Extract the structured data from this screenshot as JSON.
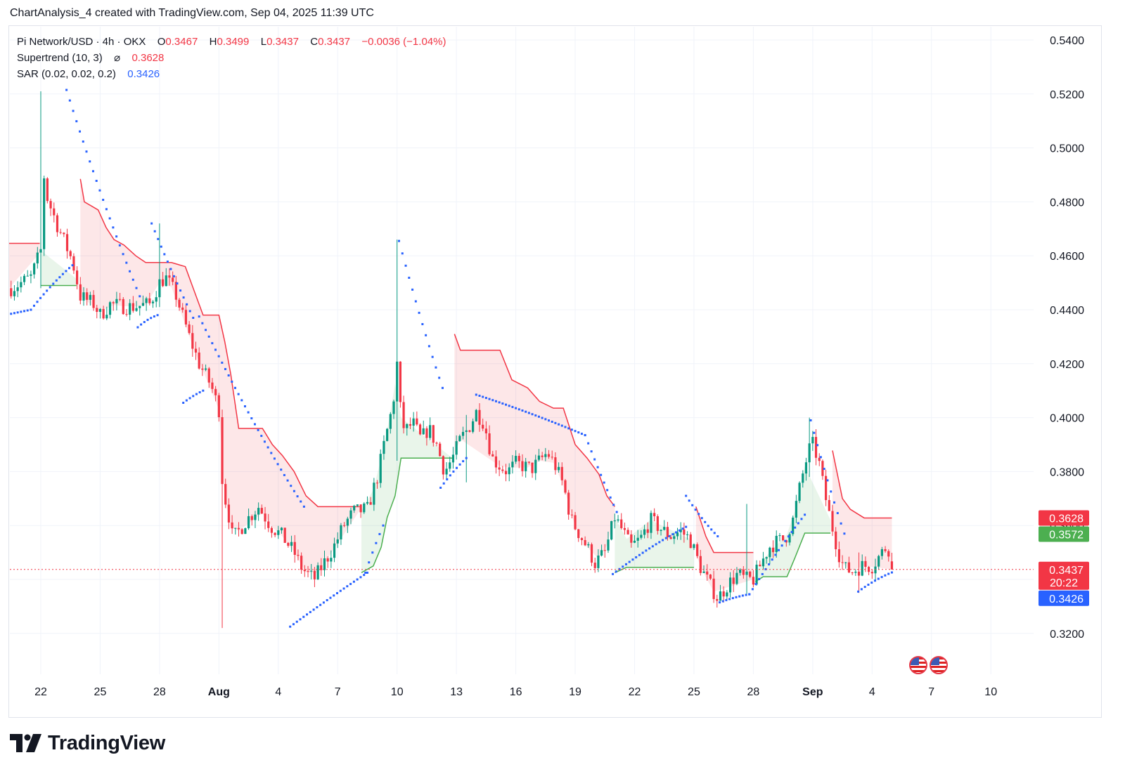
{
  "header": {
    "text": "ChartAnalysis_4 created with TradingView.com, Sep 04, 2025 11:39 UTC"
  },
  "legend": {
    "symbol": "Pi Network/USD · 4h · OKX",
    "ohlc": [
      {
        "key": "O",
        "value": "0.3467"
      },
      {
        "key": "H",
        "value": "0.3499"
      },
      {
        "key": "L",
        "value": "0.3437"
      },
      {
        "key": "C",
        "value": "0.3437"
      }
    ],
    "change": "−0.0036 (−1.04%)",
    "supertrend_label": "Supertrend (10, 3)",
    "supertrend_icon": "⌀",
    "supertrend_value": "0.3628",
    "sar_label": "SAR (0.02, 0.02, 0.2)",
    "sar_value": "0.3426"
  },
  "colors": {
    "up": "#089981",
    "down": "#f23645",
    "sar": "#2962ff",
    "st_up": "#4caf50",
    "st_down": "#f23645",
    "grid": "#f0f3fa"
  },
  "price_badges": [
    {
      "value": "0.3628",
      "color": "#f23645",
      "sub": ""
    },
    {
      "value": "0.3572",
      "color": "#4caf50",
      "sub": ""
    },
    {
      "value": "0.3437",
      "color": "#f23645",
      "sub": "20:22"
    },
    {
      "value": "0.3426",
      "color": "#2962ff",
      "sub": ""
    }
  ],
  "brand": {
    "name": "TradingView",
    "logo_icon": "tradingview-logo-icon"
  },
  "chart_data": {
    "type": "candlestick",
    "title": "Pi Network/USD · 4h · OKX",
    "xlabel": "",
    "ylabel": "",
    "ylim": [
      0.3,
      0.544
    ],
    "y_ticks": [
      "0.5400",
      "0.5200",
      "0.5000",
      "0.4800",
      "0.4600",
      "0.4400",
      "0.4200",
      "0.4000",
      "0.3800",
      "0.3600",
      "0.3400",
      "0.3200"
    ],
    "x_ticks": [
      {
        "label": "22",
        "day": 0
      },
      {
        "label": "25",
        "day": 3
      },
      {
        "label": "28",
        "day": 6
      },
      {
        "label": "Aug",
        "day": 9
      },
      {
        "label": "4",
        "day": 12
      },
      {
        "label": "7",
        "day": 15
      },
      {
        "label": "10",
        "day": 18
      },
      {
        "label": "13",
        "day": 21
      },
      {
        "label": "16",
        "day": 24
      },
      {
        "label": "19",
        "day": 27
      },
      {
        "label": "22",
        "day": 30
      },
      {
        "label": "25",
        "day": 33
      },
      {
        "label": "28",
        "day": 36
      },
      {
        "label": "Sep",
        "day": 39
      },
      {
        "label": "4",
        "day": 42
      },
      {
        "label": "7",
        "day": 45
      },
      {
        "label": "10",
        "day": 48
      }
    ],
    "x_range_days": [
      -1.6,
      49.2
    ],
    "last_close": 0.3437,
    "price_anchors": [
      [
        -1.5,
        0.448
      ],
      [
        -0.5,
        0.452
      ],
      [
        0,
        0.462
      ],
      [
        0.05,
        0.496
      ],
      [
        0.3,
        0.482
      ],
      [
        0.8,
        0.472
      ],
      [
        1.2,
        0.465
      ],
      [
        1.6,
        0.458
      ],
      [
        2.0,
        0.445
      ],
      [
        2.7,
        0.442
      ],
      [
        3.0,
        0.438
      ],
      [
        3.5,
        0.442
      ],
      [
        4.5,
        0.441
      ],
      [
        5.5,
        0.442
      ],
      [
        6.0,
        0.45
      ],
      [
        6.3,
        0.452
      ],
      [
        6.8,
        0.446
      ],
      [
        7.5,
        0.43
      ],
      [
        8.0,
        0.42
      ],
      [
        8.6,
        0.412
      ],
      [
        9.0,
        0.403
      ],
      [
        9.2,
        0.372
      ],
      [
        9.4,
        0.368
      ],
      [
        9.7,
        0.355
      ],
      [
        10.0,
        0.358
      ],
      [
        10.4,
        0.362
      ],
      [
        11.0,
        0.367
      ],
      [
        11.6,
        0.36
      ],
      [
        12.2,
        0.356
      ],
      [
        12.8,
        0.35
      ],
      [
        13.2,
        0.344
      ],
      [
        13.8,
        0.34
      ],
      [
        14.3,
        0.346
      ],
      [
        14.8,
        0.352
      ],
      [
        15.3,
        0.36
      ],
      [
        15.8,
        0.365
      ],
      [
        16.5,
        0.366
      ],
      [
        17.0,
        0.378
      ],
      [
        17.4,
        0.392
      ],
      [
        17.8,
        0.405
      ],
      [
        18.0,
        0.42
      ],
      [
        18.2,
        0.4
      ],
      [
        18.4,
        0.395
      ],
      [
        18.8,
        0.398
      ],
      [
        19.2,
        0.392
      ],
      [
        19.6,
        0.396
      ],
      [
        20.0,
        0.39
      ],
      [
        20.4,
        0.38
      ],
      [
        20.8,
        0.385
      ],
      [
        21.2,
        0.392
      ],
      [
        21.6,
        0.396
      ],
      [
        22.0,
        0.402
      ],
      [
        22.4,
        0.398
      ],
      [
        22.8,
        0.385
      ],
      [
        23.2,
        0.382
      ],
      [
        23.6,
        0.38
      ],
      [
        24.0,
        0.383
      ],
      [
        24.4,
        0.382
      ],
      [
        24.8,
        0.381
      ],
      [
        25.2,
        0.384
      ],
      [
        25.6,
        0.387
      ],
      [
        26.0,
        0.382
      ],
      [
        26.4,
        0.375
      ],
      [
        26.8,
        0.362
      ],
      [
        27.2,
        0.357
      ],
      [
        27.6,
        0.352
      ],
      [
        28.0,
        0.346
      ],
      [
        28.5,
        0.35
      ],
      [
        29.0,
        0.363
      ],
      [
        29.4,
        0.358
      ],
      [
        29.8,
        0.352
      ],
      [
        30.3,
        0.355
      ],
      [
        30.8,
        0.362
      ],
      [
        31.3,
        0.359
      ],
      [
        31.8,
        0.356
      ],
      [
        32.3,
        0.358
      ],
      [
        32.8,
        0.355
      ],
      [
        33.3,
        0.345
      ],
      [
        33.8,
        0.338
      ],
      [
        34.2,
        0.333
      ],
      [
        34.7,
        0.338
      ],
      [
        35.2,
        0.342
      ],
      [
        35.6,
        0.34
      ],
      [
        36.0,
        0.34
      ],
      [
        36.4,
        0.346
      ],
      [
        36.8,
        0.352
      ],
      [
        37.2,
        0.354
      ],
      [
        37.6,
        0.355
      ],
      [
        38.0,
        0.362
      ],
      [
        38.4,
        0.376
      ],
      [
        38.8,
        0.388
      ],
      [
        39.0,
        0.39
      ],
      [
        39.3,
        0.384
      ],
      [
        39.6,
        0.372
      ],
      [
        39.9,
        0.362
      ],
      [
        40.3,
        0.35
      ],
      [
        40.6,
        0.344
      ],
      [
        41.0,
        0.343
      ],
      [
        41.5,
        0.345
      ],
      [
        42.0,
        0.345
      ],
      [
        42.4,
        0.349
      ],
      [
        42.8,
        0.353
      ],
      [
        43.0,
        0.3437
      ]
    ],
    "spikes": [
      {
        "day": 0.05,
        "high": 0.521,
        "low": 0.448
      },
      {
        "day": 6.0,
        "high": 0.472,
        "low": 0.441
      },
      {
        "day": 9.2,
        "high": 0.403,
        "low": 0.322
      },
      {
        "day": 18.0,
        "high": 0.466,
        "low": 0.384
      },
      {
        "day": 21.5,
        "high": 0.401,
        "low": 0.376
      },
      {
        "day": 35.6,
        "high": 0.368,
        "low": 0.334
      },
      {
        "day": 38.8,
        "high": 0.4,
        "low": 0.378
      },
      {
        "day": 41.3,
        "high": 0.35,
        "low": 0.335
      }
    ],
    "supertrend": [
      {
        "dir": "down",
        "points": [
          [
            -1.6,
            0.4646
          ],
          [
            -0.05,
            0.4646
          ]
        ]
      },
      {
        "dir": "up",
        "points": [
          [
            0,
            0.449
          ],
          [
            1.8,
            0.449
          ]
        ]
      },
      {
        "dir": "down",
        "points": [
          [
            2.0,
            0.4885
          ],
          [
            2.2,
            0.48
          ],
          [
            2.9,
            0.477
          ],
          [
            3.3,
            0.4705
          ],
          [
            3.7,
            0.466
          ],
          [
            4.2,
            0.464
          ],
          [
            4.8,
            0.46
          ],
          [
            5.3,
            0.4575
          ],
          [
            6.0,
            0.4575
          ],
          [
            6.6,
            0.4575
          ],
          [
            7.3,
            0.456
          ],
          [
            7.8,
            0.446
          ],
          [
            8.2,
            0.438
          ],
          [
            9.0,
            0.438
          ],
          [
            9.3,
            0.428
          ],
          [
            9.6,
            0.416
          ],
          [
            10.0,
            0.396
          ],
          [
            11.2,
            0.396
          ],
          [
            11.7,
            0.39
          ],
          [
            12.2,
            0.386
          ],
          [
            12.8,
            0.38
          ],
          [
            13.4,
            0.371
          ],
          [
            14.0,
            0.367
          ],
          [
            16.1,
            0.367
          ]
        ]
      },
      {
        "dir": "up",
        "points": [
          [
            16.2,
            0.3425
          ],
          [
            16.8,
            0.345
          ],
          [
            17.2,
            0.352
          ],
          [
            17.5,
            0.363
          ],
          [
            17.9,
            0.371
          ],
          [
            18.2,
            0.385
          ],
          [
            20.8,
            0.385
          ]
        ]
      },
      {
        "dir": "down",
        "points": [
          [
            20.9,
            0.431
          ],
          [
            21.2,
            0.425
          ],
          [
            23.2,
            0.425
          ],
          [
            23.8,
            0.414
          ],
          [
            24.6,
            0.411
          ],
          [
            25.2,
            0.406
          ],
          [
            25.9,
            0.4035
          ],
          [
            26.4,
            0.4035
          ],
          [
            27.0,
            0.39
          ],
          [
            27.6,
            0.385
          ],
          [
            28.2,
            0.379
          ],
          [
            28.6,
            0.371
          ],
          [
            29.0,
            0.367
          ]
        ]
      },
      {
        "dir": "up",
        "points": [
          [
            29.0,
            0.3425
          ],
          [
            29.6,
            0.3445
          ],
          [
            30.8,
            0.3445
          ],
          [
            32.8,
            0.3445
          ],
          [
            33.0,
            0.3445
          ]
        ]
      },
      {
        "dir": "down",
        "points": [
          [
            33.1,
            0.367
          ],
          [
            33.6,
            0.356
          ],
          [
            34.0,
            0.35
          ],
          [
            36.0,
            0.35
          ]
        ]
      },
      {
        "dir": "up",
        "points": [
          [
            36.1,
            0.3392
          ],
          [
            36.5,
            0.341
          ],
          [
            37.7,
            0.341
          ],
          [
            38.1,
            0.348
          ],
          [
            38.6,
            0.3572
          ],
          [
            39.9,
            0.3572
          ]
        ]
      },
      {
        "dir": "down",
        "points": [
          [
            40.0,
            0.3878
          ],
          [
            40.5,
            0.37
          ],
          [
            40.9,
            0.366
          ],
          [
            41.6,
            0.3628
          ],
          [
            43.0,
            0.3628
          ]
        ]
      }
    ],
    "sar": [
      {
        "from": [
          -1.5,
          0.4385
        ],
        "to": [
          -0.5,
          0.44
        ],
        "curve": 0
      },
      {
        "from": [
          -0.5,
          0.44
        ],
        "to": [
          1.6,
          0.4565
        ],
        "curve": 0.003
      },
      {
        "from": [
          1.3,
          0.5215
        ],
        "to": [
          5.0,
          0.445
        ],
        "curve": -0.01
      },
      {
        "from": [
          4.9,
          0.4335
        ],
        "to": [
          5.9,
          0.438
        ],
        "curve": 0.002
      },
      {
        "from": [
          5.6,
          0.472
        ],
        "to": [
          7.7,
          0.437
        ],
        "curve": -0.003
      },
      {
        "from": [
          7.2,
          0.4055
        ],
        "to": [
          8.2,
          0.41
        ],
        "curve": 0.001
      },
      {
        "from": [
          8.0,
          0.4375
        ],
        "to": [
          13.3,
          0.367
        ],
        "curve": -0.01
      },
      {
        "from": [
          12.6,
          0.3225
        ],
        "to": [
          16.5,
          0.3425
        ],
        "curve": 0.001
      },
      {
        "from": [
          16.4,
          0.3425
        ],
        "to": [
          17.3,
          0.36
        ],
        "curve": 0.002
      },
      {
        "from": [
          18.1,
          0.4655
        ],
        "to": [
          20.3,
          0.411
        ],
        "curve": -0.006
      },
      {
        "from": [
          20.2,
          0.374
        ],
        "to": [
          21.5,
          0.385
        ],
        "curve": 0.002
      },
      {
        "from": [
          22.0,
          0.4085
        ],
        "to": [
          27.5,
          0.3935
        ],
        "curve": 0.002
      },
      {
        "from": [
          27.5,
          0.3935
        ],
        "to": [
          29.1,
          0.365
        ],
        "curve": -0.002
      },
      {
        "from": [
          28.9,
          0.342
        ],
        "to": [
          32.6,
          0.3595
        ],
        "curve": 0.003
      },
      {
        "from": [
          32.6,
          0.371
        ],
        "to": [
          34.2,
          0.356
        ],
        "curve": -0.003
      },
      {
        "from": [
          34.3,
          0.3315
        ],
        "to": [
          35.8,
          0.3345
        ],
        "curve": 0.001
      },
      {
        "from": [
          35.8,
          0.3345
        ],
        "to": [
          38.6,
          0.364
        ],
        "curve": 0.003
      },
      {
        "from": [
          38.9,
          0.399
        ],
        "to": [
          40.6,
          0.357
        ],
        "curve": -0.005
      },
      {
        "from": [
          41.3,
          0.3355
        ],
        "to": [
          43.0,
          0.3426
        ],
        "curve": 0.002
      }
    ]
  }
}
